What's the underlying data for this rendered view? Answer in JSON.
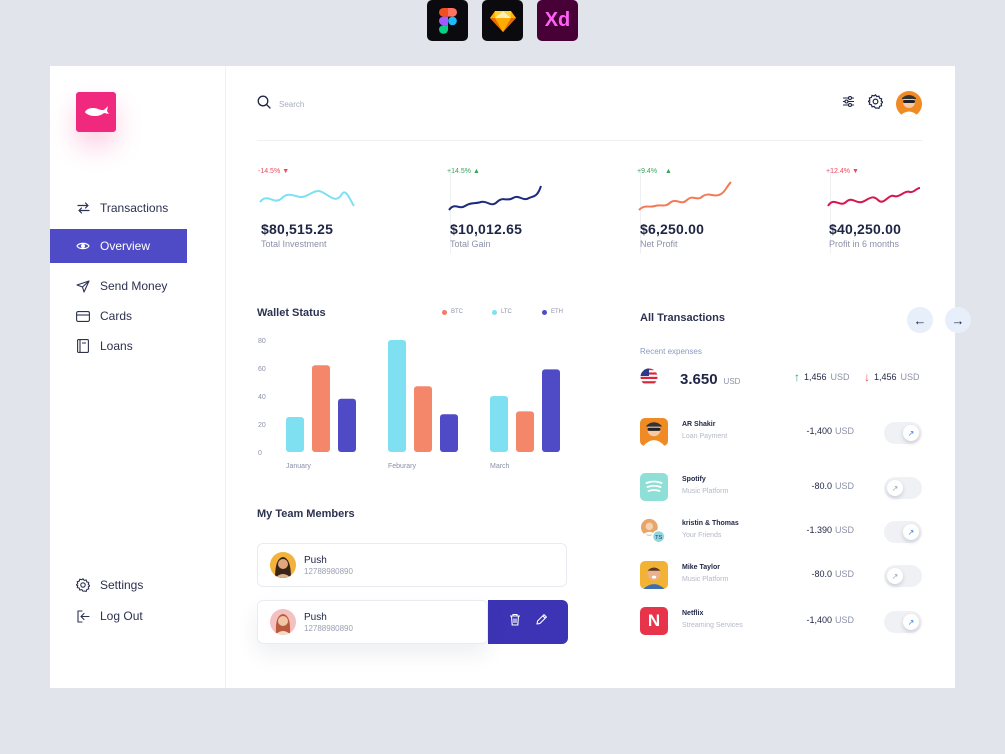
{
  "tools": [
    {
      "name": "figma-icon"
    },
    {
      "name": "sketch-icon"
    },
    {
      "name": "adobe-xd-icon",
      "label": "Xd"
    }
  ],
  "sidebar": {
    "items": [
      {
        "label": "Transactions",
        "icon": "transfer-icon"
      },
      {
        "label": "Overview",
        "icon": "eye-icon",
        "active": true
      },
      {
        "label": "Send Money",
        "icon": "send-icon"
      },
      {
        "label": "Cards",
        "icon": "card-icon"
      },
      {
        "label": "Loans",
        "icon": "book-icon"
      }
    ],
    "bottom": [
      {
        "label": "Settings",
        "icon": "gear-icon"
      },
      {
        "label": "Log Out",
        "icon": "logout-icon"
      }
    ]
  },
  "header": {
    "search_placeholder": "Search"
  },
  "stats": [
    {
      "change": "-14.5%",
      "direction": "down",
      "value": "$80,515.25",
      "label": "Total Investment",
      "color": "#7ee0f0"
    },
    {
      "change": "+14.5%",
      "direction": "up",
      "value": "$10,012.65",
      "label": "Total Gain",
      "color": "#1c2a80"
    },
    {
      "change": "+9.4%",
      "direction": "up",
      "value": "$6,250.00",
      "label": "Net Profit",
      "color": "#f47a55"
    },
    {
      "change": "+12.4%",
      "direction": "down",
      "value": "$40,250.00",
      "label": "Profit in 6 months",
      "color": "#d8154e"
    }
  ],
  "wallet": {
    "title": "Wallet Status",
    "legend": [
      {
        "name": "BTC",
        "color": "#f47a65"
      },
      {
        "name": "LTC",
        "color": "#7ee0f0"
      },
      {
        "name": "ETH",
        "color": "#4f4bc6"
      }
    ]
  },
  "chart_data": {
    "type": "bar",
    "categories": [
      "January",
      "Feburary",
      "March"
    ],
    "series": [
      {
        "name": "LTC",
        "values": [
          25,
          80,
          40
        ]
      },
      {
        "name": "BTC",
        "values": [
          62,
          47,
          29
        ]
      },
      {
        "name": "ETH",
        "values": [
          38,
          27,
          59
        ]
      }
    ],
    "y_ticks": [
      "80",
      "60",
      "40",
      "20",
      "0"
    ],
    "ylim": [
      0,
      80
    ],
    "colors": {
      "LTC": "#7ee0f0",
      "BTC": "#f4876a",
      "ETH": "#4f4bc6"
    }
  },
  "team": {
    "title": "My Team Members",
    "members": [
      {
        "name": "Push",
        "phone": "12788980890"
      },
      {
        "name": "Push",
        "phone": "12788980890"
      }
    ]
  },
  "transactions": {
    "title": "All Transactions",
    "recent_label": "Recent expenses",
    "balance": "3.650",
    "balance_unit": "USD",
    "incoming": "1,456",
    "outgoing": "1,456",
    "unit": "USD",
    "rows": [
      {
        "name": "AR Shakir",
        "sub": "Loan Payment",
        "amount": "-1,400",
        "unit": "USD",
        "on": true
      },
      {
        "name": "Spotify",
        "sub": "Music Platform",
        "amount": "-80.0",
        "unit": "USD",
        "on": false
      },
      {
        "name": "kristin & Thomas",
        "sub": "Your Friends",
        "amount": "-1.390",
        "unit": "USD",
        "on": true
      },
      {
        "name": "Mike Taylor",
        "sub": "Music Platform",
        "amount": "-80.0",
        "unit": "USD",
        "on": false
      },
      {
        "name": "Netflix",
        "sub": "Streaming Services",
        "amount": "-1,400",
        "unit": "USD",
        "on": true
      }
    ]
  }
}
